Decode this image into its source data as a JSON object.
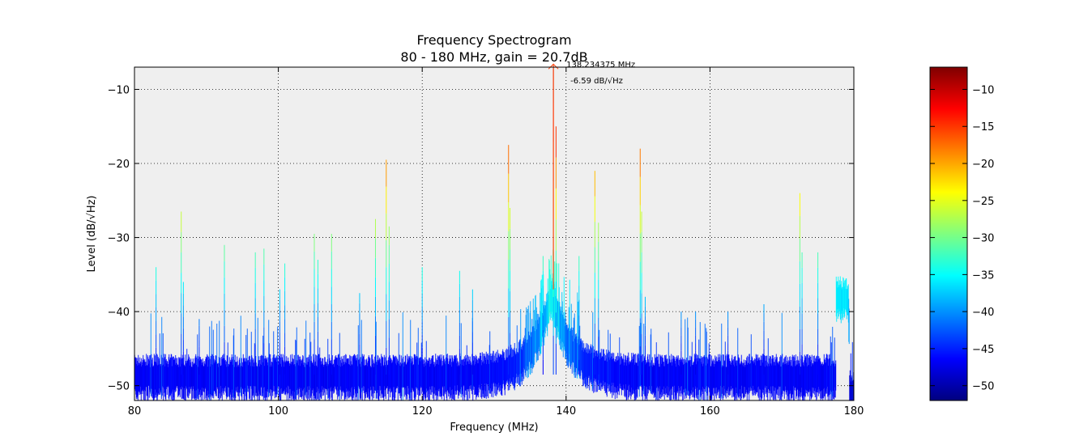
{
  "chart_data": {
    "type": "line",
    "title": "Frequency Spectrogram",
    "subtitle": "80 - 180 MHz, gain = 20.7dB",
    "xlabel": "Frequency (MHz)",
    "ylabel": "Level (dB/√Hz)",
    "xlim": [
      80,
      180
    ],
    "ylim": [
      -52,
      -7
    ],
    "xticks": [
      80,
      100,
      120,
      140,
      160,
      180
    ],
    "xtick_labels": [
      "80",
      "100",
      "120",
      "140",
      "160",
      "180"
    ],
    "yticks": [
      -10,
      -20,
      -30,
      -40,
      -50
    ],
    "ytick_labels": [
      "−10",
      "−20",
      "−30",
      "−40",
      "−50"
    ],
    "grid": true,
    "background": "#efefef",
    "colormap": "jet",
    "colorbar": {
      "range": [
        -52,
        -7
      ],
      "ticks": [
        -10,
        -15,
        -20,
        -25,
        -30,
        -35,
        -40,
        -45,
        -50
      ],
      "tick_labels": [
        "−10",
        "−15",
        "−20",
        "−25",
        "−30",
        "−35",
        "−40",
        "−45",
        "−50"
      ]
    },
    "noise_floor_db": -48.5,
    "broad_hump": {
      "center_mhz": 138,
      "peak_db": -37.5
    },
    "end_hump": {
      "start_mhz": 177.5,
      "end_mhz": 179.2,
      "peak_db": -38
    },
    "peaks": [
      {
        "x": 83.0,
        "y": -34
      },
      {
        "x": 86.5,
        "y": -26.5
      },
      {
        "x": 86.8,
        "y": -36
      },
      {
        "x": 89.0,
        "y": -41
      },
      {
        "x": 92.5,
        "y": -31
      },
      {
        "x": 96.8,
        "y": -32
      },
      {
        "x": 98.0,
        "y": -31.5
      },
      {
        "x": 100.2,
        "y": -37
      },
      {
        "x": 100.9,
        "y": -33.5
      },
      {
        "x": 105.0,
        "y": -29.5
      },
      {
        "x": 105.5,
        "y": -33
      },
      {
        "x": 107.4,
        "y": -29.5
      },
      {
        "x": 111.3,
        "y": -37.5
      },
      {
        "x": 113.5,
        "y": -27.5
      },
      {
        "x": 115.0,
        "y": -19.5
      },
      {
        "x": 115.4,
        "y": -28.5
      },
      {
        "x": 120.0,
        "y": -34
      },
      {
        "x": 125.2,
        "y": -34.5
      },
      {
        "x": 127.0,
        "y": -37
      },
      {
        "x": 132.0,
        "y": -17.5
      },
      {
        "x": 132.2,
        "y": -26
      },
      {
        "x": 136.8,
        "y": -32.5
      },
      {
        "x": 138.234375,
        "y": -6.59
      },
      {
        "x": 138.6,
        "y": -15
      },
      {
        "x": 141.8,
        "y": -32.5
      },
      {
        "x": 144.0,
        "y": -21
      },
      {
        "x": 144.5,
        "y": -28
      },
      {
        "x": 150.3,
        "y": -18
      },
      {
        "x": 150.5,
        "y": -26.5
      },
      {
        "x": 151.0,
        "y": -38
      },
      {
        "x": 156.0,
        "y": -40
      },
      {
        "x": 158.0,
        "y": -40
      },
      {
        "x": 162.5,
        "y": -40
      },
      {
        "x": 167.5,
        "y": -39
      },
      {
        "x": 172.5,
        "y": -24
      },
      {
        "x": 172.8,
        "y": -32
      },
      {
        "x": 175.0,
        "y": -32
      }
    ],
    "marker": {
      "x": 138.234375,
      "y": -6.59,
      "freq_label": "138.234375 MHz",
      "level_label": "-6.59 dB/√Hz",
      "color": "#ff4d1a"
    }
  }
}
